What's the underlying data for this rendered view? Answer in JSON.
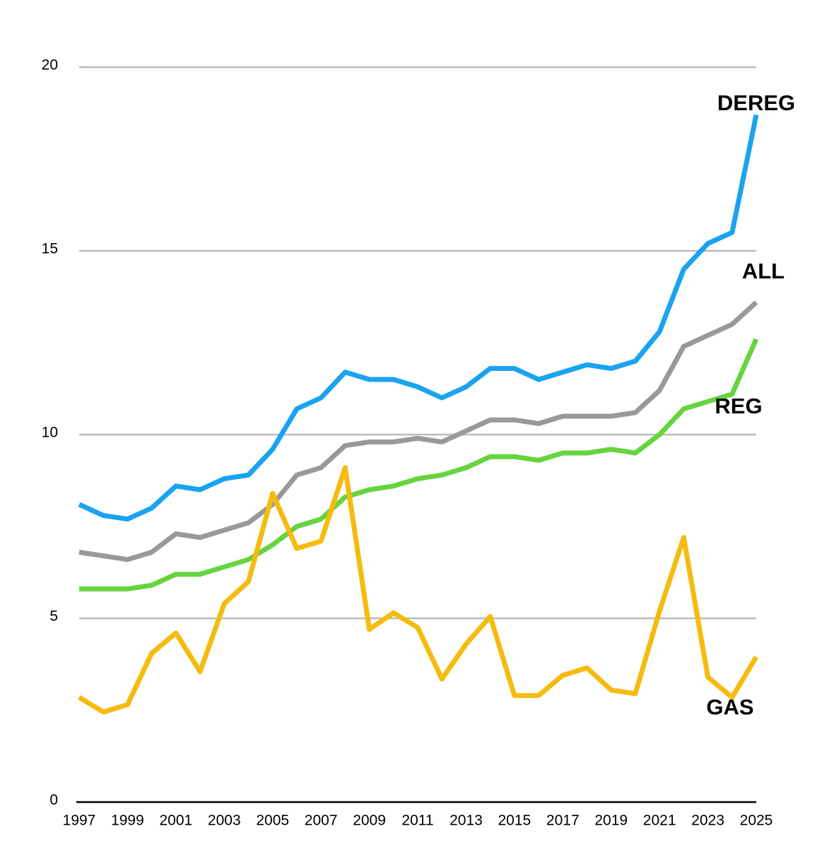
{
  "chart_data": {
    "type": "line",
    "x": [
      1997,
      1998,
      1999,
      2000,
      2001,
      2002,
      2003,
      2004,
      2005,
      2006,
      2007,
      2008,
      2009,
      2010,
      2011,
      2012,
      2013,
      2014,
      2015,
      2016,
      2017,
      2018,
      2019,
      2020,
      2021,
      2022,
      2023,
      2024,
      2025
    ],
    "xlim": [
      1997,
      2025
    ],
    "xticks": [
      1997,
      1999,
      2001,
      2003,
      2005,
      2007,
      2009,
      2011,
      2013,
      2015,
      2017,
      2019,
      2021,
      2023,
      2025
    ],
    "ylim": [
      0,
      20
    ],
    "yticks": [
      0,
      5,
      10,
      15,
      20
    ],
    "grid": true,
    "series": [
      {
        "name": "DEREG",
        "color": "#1aa3f0",
        "values": [
          8.1,
          7.8,
          7.7,
          8.0,
          8.6,
          8.5,
          8.8,
          8.9,
          9.6,
          10.7,
          11.0,
          11.7,
          11.5,
          11.5,
          11.3,
          11.0,
          11.3,
          11.8,
          11.8,
          11.5,
          11.7,
          11.9,
          11.8,
          12.0,
          12.8,
          14.5,
          15.2,
          15.5,
          18.7
        ]
      },
      {
        "name": "ALL",
        "color": "#999999",
        "values": [
          6.8,
          6.7,
          6.6,
          6.8,
          7.3,
          7.2,
          7.4,
          7.6,
          8.1,
          8.9,
          9.1,
          9.7,
          9.8,
          9.8,
          9.9,
          9.8,
          10.1,
          10.4,
          10.4,
          10.3,
          10.5,
          10.5,
          10.5,
          10.6,
          11.2,
          12.4,
          12.7,
          13.0,
          13.6
        ]
      },
      {
        "name": "REG",
        "color": "#66d43f",
        "values": [
          5.8,
          5.8,
          5.8,
          5.9,
          6.2,
          6.2,
          6.4,
          6.6,
          7.0,
          7.5,
          7.7,
          8.3,
          8.5,
          8.6,
          8.8,
          8.9,
          9.1,
          9.4,
          9.4,
          9.3,
          9.5,
          9.5,
          9.6,
          9.5,
          10.0,
          10.7,
          10.9,
          11.1,
          12.6
        ]
      },
      {
        "name": "GAS",
        "color": "#f5bb0f",
        "values": [
          2.85,
          2.45,
          2.65,
          4.05,
          4.6,
          3.55,
          5.4,
          6.0,
          8.4,
          6.9,
          7.1,
          9.1,
          4.7,
          5.15,
          4.75,
          3.35,
          4.3,
          5.05,
          2.9,
          2.9,
          3.45,
          3.65,
          3.05,
          2.95,
          5.2,
          7.2,
          3.4,
          2.85,
          3.95
        ]
      }
    ]
  }
}
